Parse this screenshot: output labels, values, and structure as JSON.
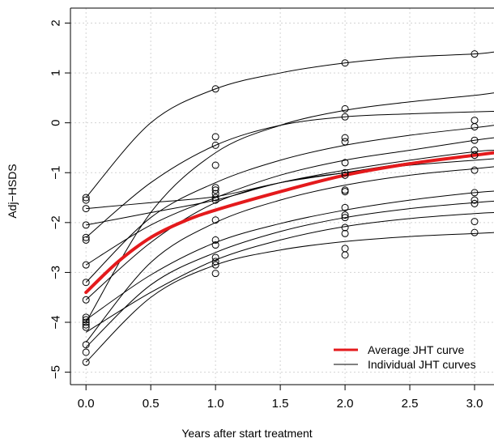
{
  "chart_data": {
    "type": "scatter",
    "title": "",
    "xlabel": "Years after start treatment",
    "ylabel": "Adj−HSDS",
    "xlim": [
      -0.12,
      3.15
    ],
    "ylim": [
      -5.25,
      2.3
    ],
    "grid": true,
    "x_ticks": [
      {
        "value": 0.0,
        "label": "0.0"
      },
      {
        "value": 0.5,
        "label": "0.5"
      },
      {
        "value": 1.0,
        "label": "1.0"
      },
      {
        "value": 1.5,
        "label": "1.5"
      },
      {
        "value": 2.0,
        "label": "2.0"
      },
      {
        "value": 2.5,
        "label": "2.5"
      },
      {
        "value": 3.0,
        "label": "3.0"
      }
    ],
    "y_ticks": [
      {
        "value": 2,
        "label": "2"
      },
      {
        "value": 1,
        "label": "1"
      },
      {
        "value": 0,
        "label": "0"
      },
      {
        "value": -1,
        "label": "−1"
      },
      {
        "value": -2,
        "label": "−2"
      },
      {
        "value": -3,
        "label": "−3"
      },
      {
        "value": -4,
        "label": "−4"
      },
      {
        "value": -5,
        "label": "−5"
      }
    ],
    "legend": {
      "position": "bottom-right",
      "entries": [
        {
          "label": "Average JHT curve",
          "color": "#e41a1c"
        },
        {
          "label": "Individual JHT curves",
          "color": "#000000"
        }
      ]
    },
    "series": [
      {
        "name": "Average JHT curve",
        "color": "#e41a1c",
        "points": [
          [
            0.0,
            -3.4
          ],
          [
            0.25,
            -2.78
          ],
          [
            0.5,
            -2.3
          ],
          [
            0.75,
            -1.98
          ],
          [
            1.0,
            -1.75
          ],
          [
            1.5,
            -1.38
          ],
          [
            2.0,
            -1.05
          ],
          [
            2.5,
            -0.82
          ],
          [
            3.0,
            -0.65
          ],
          [
            3.15,
            -0.6
          ]
        ]
      },
      {
        "name": "Individual JHT curves",
        "color": "#000000",
        "curves": [
          [
            [
              0.0,
              -1.5
            ],
            [
              0.5,
              0.0
            ],
            [
              1.0,
              0.68
            ],
            [
              1.5,
              1.0
            ],
            [
              2.0,
              1.2
            ],
            [
              2.5,
              1.32
            ],
            [
              3.0,
              1.38
            ],
            [
              3.15,
              1.42
            ]
          ],
          [
            [
              0.0,
              -4.0
            ],
            [
              0.5,
              -1.8
            ],
            [
              1.0,
              -0.6
            ],
            [
              1.5,
              -0.05
            ],
            [
              2.0,
              0.25
            ],
            [
              2.5,
              0.42
            ],
            [
              3.0,
              0.55
            ],
            [
              3.15,
              0.6
            ]
          ],
          [
            [
              0.0,
              -2.3
            ],
            [
              0.5,
              -1.2
            ],
            [
              1.0,
              -0.45
            ],
            [
              1.5,
              -0.05
            ],
            [
              2.0,
              0.12
            ],
            [
              2.5,
              0.18
            ],
            [
              3.0,
              0.22
            ],
            [
              3.15,
              0.23
            ]
          ],
          [
            [
              0.0,
              -3.2
            ],
            [
              0.5,
              -1.9
            ],
            [
              1.0,
              -1.2
            ],
            [
              1.5,
              -0.75
            ],
            [
              2.0,
              -0.45
            ],
            [
              2.5,
              -0.25
            ],
            [
              3.0,
              -0.1
            ],
            [
              3.15,
              -0.05
            ]
          ],
          [
            [
              0.0,
              -2.85
            ],
            [
              0.5,
              -2.05
            ],
            [
              1.0,
              -1.5
            ],
            [
              1.5,
              -1.05
            ],
            [
              2.0,
              -0.75
            ],
            [
              2.5,
              -0.55
            ],
            [
              3.0,
              -0.35
            ],
            [
              3.15,
              -0.3
            ]
          ],
          [
            [
              0.0,
              -2.05
            ],
            [
              0.5,
              -1.8
            ],
            [
              1.0,
              -1.55
            ],
            [
              1.5,
              -1.2
            ],
            [
              2.0,
              -0.95
            ],
            [
              2.5,
              -0.75
            ],
            [
              3.0,
              -0.58
            ],
            [
              3.15,
              -0.55
            ]
          ],
          [
            [
              0.0,
              -1.72
            ],
            [
              0.5,
              -1.6
            ],
            [
              1.0,
              -1.48
            ],
            [
              1.5,
              -1.2
            ],
            [
              2.0,
              -1.0
            ],
            [
              2.5,
              -0.8
            ],
            [
              3.0,
              -0.65
            ],
            [
              3.15,
              -0.6
            ]
          ],
          [
            [
              0.0,
              -3.55
            ],
            [
              0.5,
              -2.4
            ],
            [
              1.0,
              -1.6
            ],
            [
              1.5,
              -1.2
            ],
            [
              2.0,
              -1.0
            ],
            [
              2.5,
              -0.85
            ],
            [
              3.0,
              -0.75
            ],
            [
              3.15,
              -0.72
            ]
          ],
          [
            [
              0.0,
              -4.4
            ],
            [
              0.5,
              -2.8
            ],
            [
              1.0,
              -2.0
            ],
            [
              1.5,
              -1.55
            ],
            [
              2.0,
              -1.25
            ],
            [
              2.5,
              -1.05
            ],
            [
              3.0,
              -0.92
            ],
            [
              3.15,
              -0.88
            ]
          ],
          [
            [
              0.0,
              -3.95
            ],
            [
              0.5,
              -3.05
            ],
            [
              1.0,
              -2.4
            ],
            [
              1.5,
              -2.02
            ],
            [
              2.0,
              -1.75
            ],
            [
              2.5,
              -1.55
            ],
            [
              3.0,
              -1.4
            ],
            [
              3.15,
              -1.37
            ]
          ],
          [
            [
              0.0,
              -4.5
            ],
            [
              0.5,
              -3.25
            ],
            [
              1.0,
              -2.6
            ],
            [
              1.5,
              -2.18
            ],
            [
              2.0,
              -1.9
            ],
            [
              2.5,
              -1.72
            ],
            [
              3.0,
              -1.6
            ],
            [
              3.15,
              -1.57
            ]
          ],
          [
            [
              0.0,
              -4.2
            ],
            [
              0.5,
              -3.4
            ],
            [
              1.0,
              -2.75
            ],
            [
              1.5,
              -2.35
            ],
            [
              2.0,
              -2.08
            ],
            [
              2.5,
              -1.92
            ],
            [
              3.0,
              -1.82
            ],
            [
              3.15,
              -1.8
            ]
          ],
          [
            [
              0.0,
              -4.8
            ],
            [
              0.5,
              -3.5
            ],
            [
              1.0,
              -2.85
            ],
            [
              1.5,
              -2.55
            ],
            [
              2.0,
              -2.38
            ],
            [
              2.5,
              -2.28
            ],
            [
              3.0,
              -2.22
            ],
            [
              3.15,
              -2.2
            ]
          ]
        ]
      },
      {
        "name": "Observations",
        "marker": "open-circle",
        "points": [
          [
            0.0,
            -1.5
          ],
          [
            0.0,
            -1.55
          ],
          [
            0.0,
            -1.72
          ],
          [
            0.0,
            -2.05
          ],
          [
            0.0,
            -2.3
          ],
          [
            0.0,
            -2.35
          ],
          [
            0.0,
            -2.85
          ],
          [
            0.0,
            -3.2
          ],
          [
            0.0,
            -3.55
          ],
          [
            0.0,
            -3.9
          ],
          [
            0.0,
            -3.95
          ],
          [
            0.0,
            -4.0
          ],
          [
            0.0,
            -4.05
          ],
          [
            0.0,
            -4.1
          ],
          [
            0.0,
            -4.45
          ],
          [
            0.0,
            -4.6
          ],
          [
            0.0,
            -4.8
          ],
          [
            1.0,
            0.68
          ],
          [
            1.0,
            -0.28
          ],
          [
            1.0,
            -0.45
          ],
          [
            1.0,
            -0.85
          ],
          [
            1.0,
            -1.3
          ],
          [
            1.0,
            -1.35
          ],
          [
            1.0,
            -1.42
          ],
          [
            1.0,
            -1.5
          ],
          [
            1.0,
            -1.55
          ],
          [
            1.0,
            -1.95
          ],
          [
            1.0,
            -2.35
          ],
          [
            1.0,
            -2.45
          ],
          [
            1.0,
            -2.7
          ],
          [
            1.0,
            -2.78
          ],
          [
            1.0,
            -2.85
          ],
          [
            1.0,
            -3.02
          ],
          [
            2.0,
            1.2
          ],
          [
            2.0,
            0.28
          ],
          [
            2.0,
            0.12
          ],
          [
            2.0,
            -0.3
          ],
          [
            2.0,
            -0.38
          ],
          [
            2.0,
            -0.8
          ],
          [
            2.0,
            -1.0
          ],
          [
            2.0,
            -1.05
          ],
          [
            2.0,
            -1.35
          ],
          [
            2.0,
            -1.38
          ],
          [
            2.0,
            -1.7
          ],
          [
            2.0,
            -1.85
          ],
          [
            2.0,
            -1.9
          ],
          [
            2.0,
            -2.1
          ],
          [
            2.0,
            -2.22
          ],
          [
            2.0,
            -2.52
          ],
          [
            2.0,
            -2.65
          ],
          [
            3.0,
            1.38
          ],
          [
            3.0,
            0.05
          ],
          [
            3.0,
            -0.08
          ],
          [
            3.0,
            -0.35
          ],
          [
            3.0,
            -0.55
          ],
          [
            3.0,
            -0.65
          ],
          [
            3.0,
            -0.95
          ],
          [
            3.0,
            -1.4
          ],
          [
            3.0,
            -1.55
          ],
          [
            3.0,
            -1.62
          ],
          [
            3.0,
            -1.98
          ],
          [
            3.0,
            -2.2
          ]
        ]
      }
    ]
  }
}
